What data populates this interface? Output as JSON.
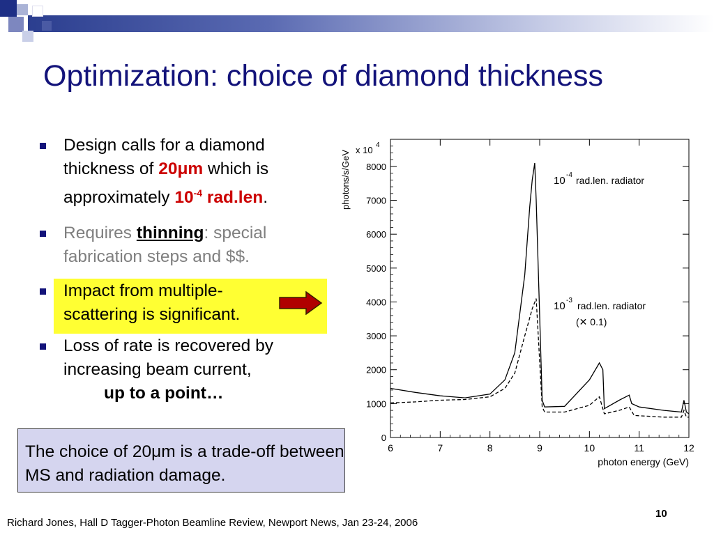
{
  "slide": {
    "title": "Optimization: choice of diamond thickness",
    "bullets": {
      "b1_pre": "Design calls for a diamond thickness of ",
      "b1_thickness": "20μm",
      "b1_mid": " which is approximately ",
      "b1_radlen": "10",
      "b1_radlen_exp": "-4",
      "b1_radlen_unit": " rad.len",
      "b1_post": ".",
      "b2_pre": "Requires ",
      "b2_link": "thinning",
      "b2_post": ": special fabrication steps and $$.",
      "b3": "Impact from multiple-scattering is significant.",
      "b4_main": "Loss of rate is recovered by increasing beam current,",
      "b4_sub": "up to a point…"
    },
    "note": "The choice of 20μm is a trade-off between MS and radiation damage.",
    "footer": "Richard Jones, Hall D Tagger-Photon Beamline Review, Newport News, Jan 23-24, 2006",
    "page_number": "10"
  },
  "colors": {
    "title": "#13137a",
    "accent_red": "#cc0000",
    "highlight": "#ffff33",
    "note_bg": "#d5d5ef",
    "arrow": "#b00000",
    "bar_dark": "#2b3e8f"
  },
  "chart_data": {
    "type": "line",
    "ylabel": "photons/s/GeV",
    "xlabel": "photon energy (GeV)",
    "y_multiplier": "x 10",
    "y_multiplier_exp": "4",
    "xlim": [
      6,
      12
    ],
    "ylim": [
      0,
      8800
    ],
    "x_ticks": [
      "6",
      "7",
      "8",
      "9",
      "10",
      "11",
      "12"
    ],
    "y_ticks": [
      "0",
      "1000",
      "2000",
      "3000",
      "4000",
      "5000",
      "6000",
      "7000",
      "8000"
    ],
    "series": [
      {
        "name": "10-4 rad.len. radiator",
        "label_base": "10",
        "label_exp": "-4",
        "label_text": "rad.len. radiator",
        "style": "solid",
        "x": [
          6.0,
          6.5,
          7.0,
          7.5,
          8.0,
          8.3,
          8.5,
          8.7,
          8.8,
          8.85,
          8.9,
          8.93,
          9.05,
          9.1,
          9.5,
          10.0,
          10.2,
          10.27,
          10.3,
          10.6,
          10.8,
          10.85,
          11.0,
          11.5,
          11.85,
          11.9,
          11.95,
          12.0
        ],
        "y": [
          1450,
          1330,
          1230,
          1170,
          1280,
          1700,
          2500,
          4800,
          6800,
          7600,
          8100,
          7000,
          1100,
          900,
          920,
          1700,
          2200,
          2000,
          850,
          1100,
          1250,
          1000,
          900,
          800,
          750,
          1100,
          750,
          700
        ]
      },
      {
        "name": "10-3 rad.len. radiator (x 0.1)",
        "label_base": "10",
        "label_exp": "-3",
        "label_text": "rad.len. radiator",
        "label_line2": "(✕ 0.1)",
        "style": "dashed",
        "x": [
          6.0,
          6.5,
          7.0,
          7.5,
          8.0,
          8.3,
          8.5,
          8.7,
          8.85,
          8.93,
          9.05,
          9.1,
          9.5,
          10.0,
          10.2,
          10.3,
          10.6,
          10.8,
          10.9,
          11.5,
          11.85,
          11.9,
          11.95,
          12.0
        ],
        "y": [
          1020,
          1050,
          1100,
          1120,
          1200,
          1450,
          1900,
          3000,
          3800,
          4100,
          900,
          750,
          750,
          950,
          1200,
          700,
          800,
          900,
          650,
          600,
          600,
          800,
          600,
          600
        ]
      }
    ]
  }
}
